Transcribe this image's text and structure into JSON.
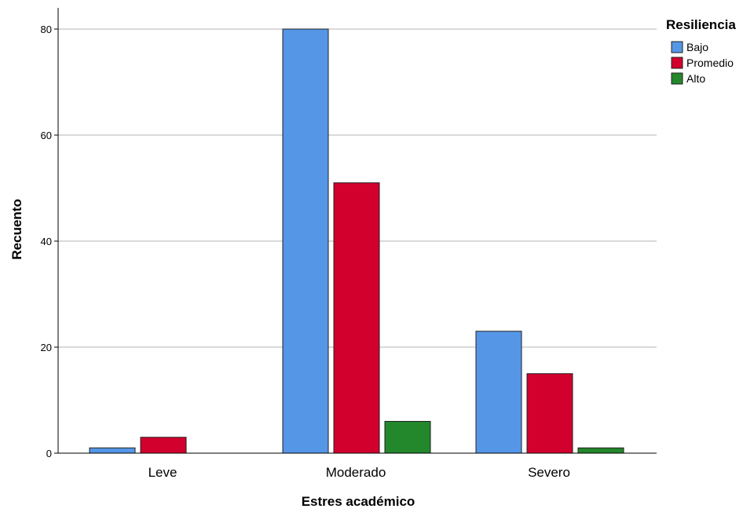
{
  "chart_data": {
    "type": "bar",
    "xlabel": "Estres académico",
    "ylabel": "Recuento",
    "categories": [
      "Leve",
      "Moderado",
      "Severo"
    ],
    "series": [
      {
        "name": "Bajo",
        "values": [
          1,
          80,
          23
        ],
        "color": "#5596E6"
      },
      {
        "name": "Promedio",
        "values": [
          3,
          51,
          15
        ],
        "color": "#D2002D"
      },
      {
        "name": "Alto",
        "values": [
          0,
          6,
          1
        ],
        "color": "#23872B"
      }
    ],
    "ylim": [
      0,
      84
    ],
    "yticks": [
      0,
      20,
      40,
      60,
      80
    ],
    "grid": true,
    "legend": {
      "title": "Resiliencia",
      "position": "top-right"
    }
  }
}
